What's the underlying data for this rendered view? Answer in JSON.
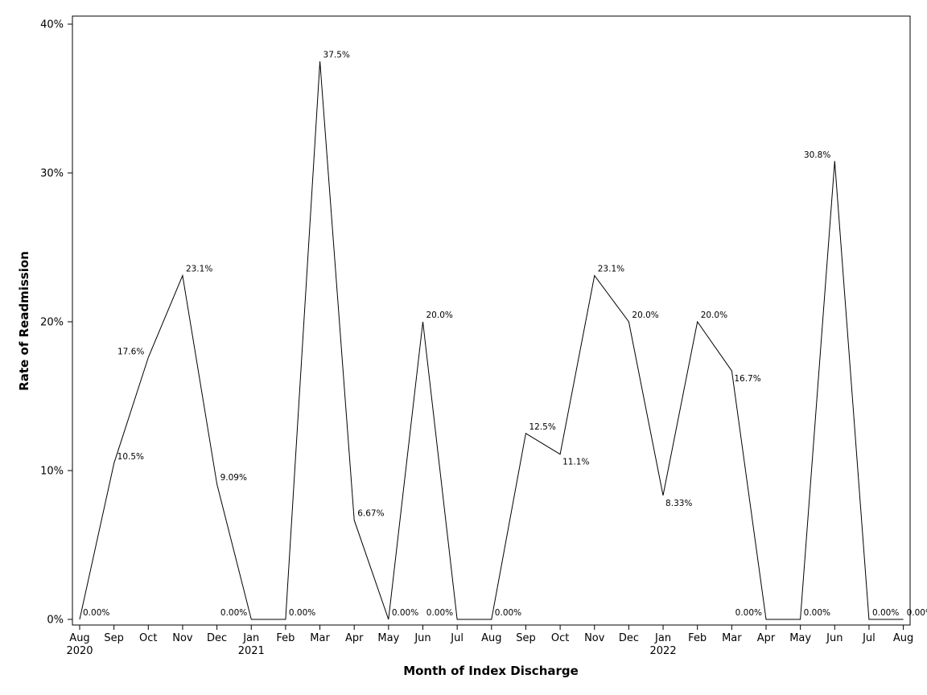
{
  "chart_data": {
    "type": "line",
    "title": "",
    "xlabel": "Month of Index Discharge",
    "ylabel": "Rate of Readmission",
    "ylim": [
      0,
      40
    ],
    "y_ticks": [
      "0%",
      "10%",
      "20%",
      "30%",
      "40%"
    ],
    "y_tick_values": [
      0,
      10,
      20,
      30,
      40
    ],
    "x_ticks": [
      {
        "month": "Aug",
        "year": "2020"
      },
      {
        "month": "Sep",
        "year": ""
      },
      {
        "month": "Oct",
        "year": ""
      },
      {
        "month": "Nov",
        "year": ""
      },
      {
        "month": "Dec",
        "year": ""
      },
      {
        "month": "Jan",
        "year": "2021"
      },
      {
        "month": "Feb",
        "year": ""
      },
      {
        "month": "Mar",
        "year": ""
      },
      {
        "month": "Apr",
        "year": ""
      },
      {
        "month": "May",
        "year": ""
      },
      {
        "month": "Jun",
        "year": ""
      },
      {
        "month": "Jul",
        "year": ""
      },
      {
        "month": "Aug",
        "year": ""
      },
      {
        "month": "Sep",
        "year": ""
      },
      {
        "month": "Oct",
        "year": ""
      },
      {
        "month": "Nov",
        "year": ""
      },
      {
        "month": "Dec",
        "year": ""
      },
      {
        "month": "Jan",
        "year": "2022"
      },
      {
        "month": "Feb",
        "year": ""
      },
      {
        "month": "Mar",
        "year": ""
      },
      {
        "month": "Apr",
        "year": ""
      },
      {
        "month": "May",
        "year": ""
      },
      {
        "month": "Jun",
        "year": ""
      },
      {
        "month": "Jul",
        "year": ""
      },
      {
        "month": "Aug",
        "year": ""
      }
    ],
    "x": [
      "2020-08-01",
      "2020-09-01",
      "2020-10-01",
      "2020-11-01",
      "2020-12-01",
      "2021-01-01",
      "2021-02-01",
      "2021-03-01",
      "2021-04-01",
      "2021-05-01",
      "2021-06-01",
      "2021-07-01",
      "2021-08-01",
      "2021-09-01",
      "2021-10-01",
      "2021-11-01",
      "2021-12-01",
      "2022-01-01",
      "2022-02-01",
      "2022-03-01",
      "2022-04-01",
      "2022-05-01",
      "2022-06-01",
      "2022-07-01",
      "2022-08-01"
    ],
    "values": [
      0.0,
      10.5,
      17.6,
      23.1,
      9.09,
      0.0,
      0.0,
      37.5,
      6.67,
      0.0,
      20.0,
      0.0,
      0.0,
      12.5,
      11.1,
      23.1,
      20.0,
      8.33,
      20.0,
      16.7,
      0.0,
      0.0,
      30.8,
      0.0,
      0.0
    ],
    "data_labels": [
      "0.00%",
      "10.5%",
      "17.6%",
      "23.1%",
      "9.09%",
      "0.00%",
      "0.00%",
      "37.5%",
      "6.67%",
      "0.00%",
      "20.0%",
      "0.00%",
      "0.00%",
      "12.5%",
      "11.1%",
      "23.1%",
      "20.0%",
      "8.33%",
      "20.0%",
      "16.7%",
      "0.00%",
      "0.00%",
      "30.8%",
      "0.00%",
      "0.00%"
    ],
    "grid": false,
    "legend": "none",
    "line_color": "#000000"
  }
}
